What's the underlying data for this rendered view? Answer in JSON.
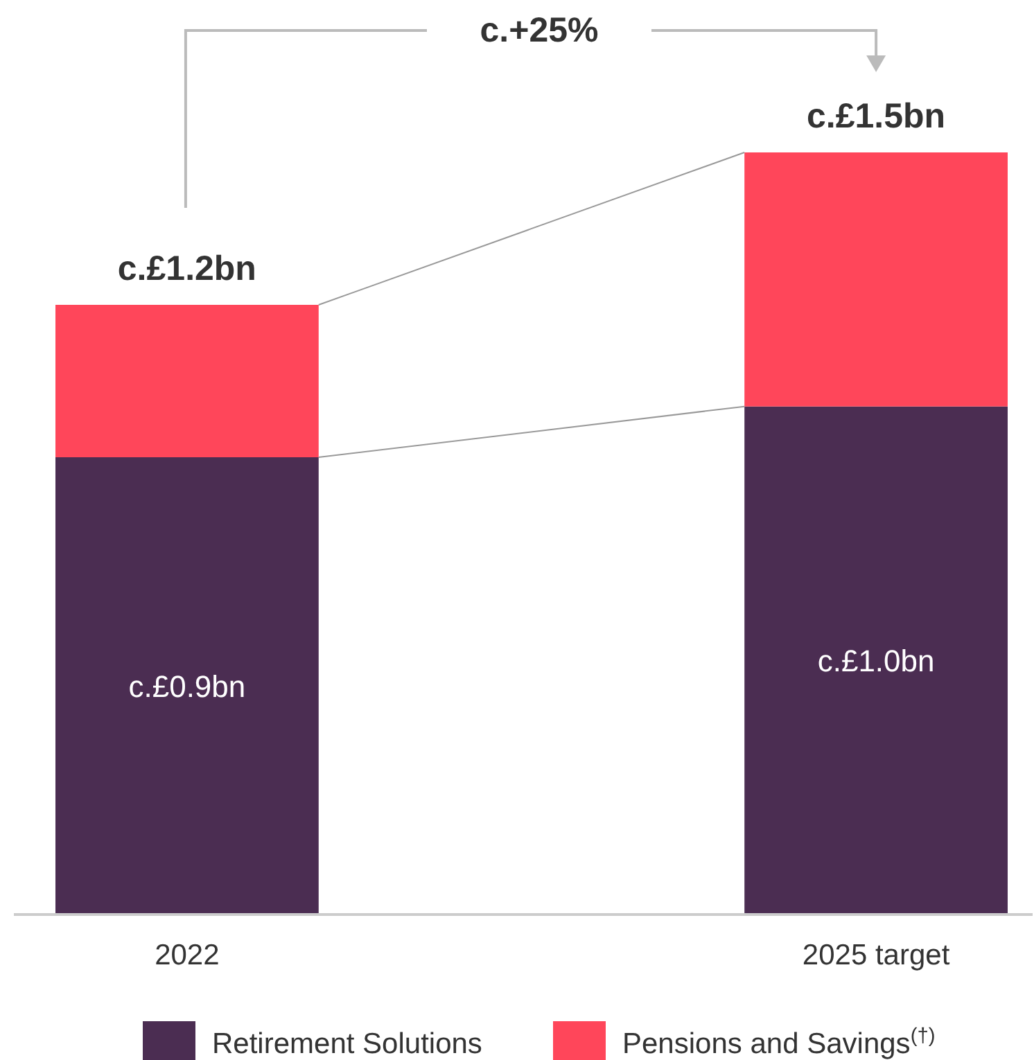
{
  "chart_data": {
    "type": "bar",
    "stacked": true,
    "categories": [
      "2022",
      "2025 target"
    ],
    "series": [
      {
        "name": "Retirement Solutions",
        "color": "#4b2d52",
        "values": [
          0.9,
          1.0
        ],
        "value_labels": [
          "c.£0.9bn",
          "c.£1.0bn"
        ]
      },
      {
        "name": "Pensions and Savings$^{(†)}$",
        "color": "#ff465a",
        "values": [
          0.3,
          0.5
        ]
      }
    ],
    "totals": [
      "c.£1.2bn",
      "c.£1.5bn"
    ],
    "annotations": [
      "c.+25%"
    ],
    "legend": "bottom"
  }
}
